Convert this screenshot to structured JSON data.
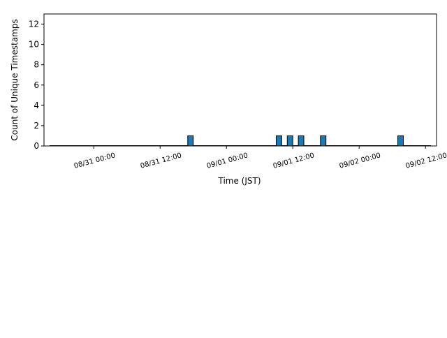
{
  "chart_data": {
    "type": "bar",
    "title": "",
    "xlabel": "Time (JST)",
    "ylabel": "Count of Unique Timestamps",
    "x_axis_type": "datetime",
    "x_tick_format": "%m/%d %H:%M",
    "x_tick_rotation_deg": 15,
    "xlim": [
      "2008-08-30 15:00",
      "2008-09-02 14:00"
    ],
    "ylim": [
      0,
      13
    ],
    "y_ticks": [
      0,
      2,
      4,
      6,
      8,
      10,
      12
    ],
    "x_ticks": [
      {
        "t": "2008-08-31 00:00",
        "label": "08/31 00:00"
      },
      {
        "t": "2008-08-31 12:00",
        "label": "08/31 12:00"
      },
      {
        "t": "2008-09-01 00:00",
        "label": "09/01 00:00"
      },
      {
        "t": "2008-09-01 12:00",
        "label": "09/01 12:00"
      },
      {
        "t": "2008-09-02 00:00",
        "label": "09/02 00:00"
      },
      {
        "t": "2008-09-02 12:00",
        "label": "09/02 12:00"
      }
    ],
    "bins": [
      {
        "start": "2008-08-31 17:00",
        "end": "2008-08-31 18:00",
        "count": 1
      },
      {
        "start": "2008-09-01 09:00",
        "end": "2008-09-01 10:00",
        "count": 1
      },
      {
        "start": "2008-09-01 11:00",
        "end": "2008-09-01 12:00",
        "count": 1
      },
      {
        "start": "2008-09-01 13:00",
        "end": "2008-09-01 14:00",
        "count": 1
      },
      {
        "start": "2008-09-01 17:00",
        "end": "2008-09-01 18:00",
        "count": 1
      },
      {
        "start": "2008-09-02 07:00",
        "end": "2008-09-02 08:00",
        "count": 1
      }
    ],
    "baseline_extent": [
      "2008-08-30 16:00",
      "2008-09-02 13:00"
    ],
    "grid": false,
    "legend": "none",
    "bar_color": "#1f77b4",
    "bar_edge_color": "#000000"
  }
}
